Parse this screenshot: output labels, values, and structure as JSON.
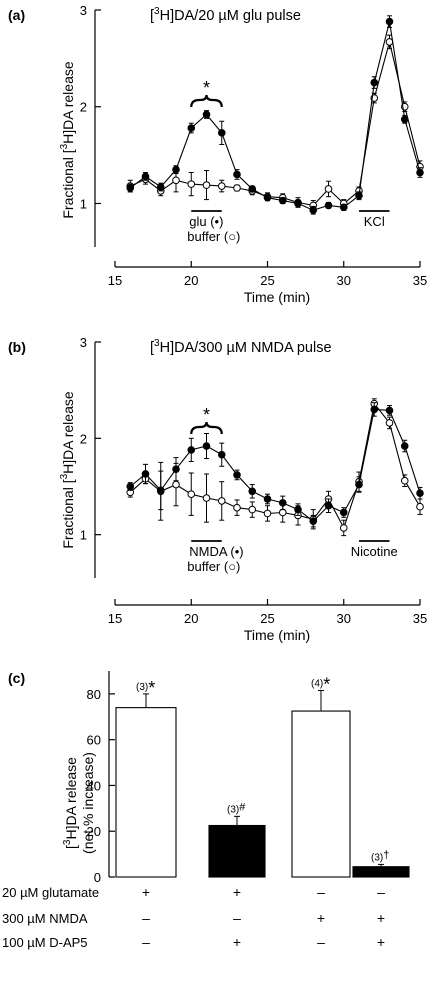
{
  "chart_data": [
    {
      "type": "line",
      "panel_label": "(a)",
      "title_parts": [
        "[",
        "3",
        "H]DA/20 µM glu pulse"
      ],
      "ylabel_parts": [
        "Fractional [",
        "3",
        "H]DA release"
      ],
      "xlabel": "Time (min)",
      "xlim": [
        15,
        35
      ],
      "ylim": [
        0.55,
        3
      ],
      "xticks": [
        "15",
        "20",
        "25",
        "30",
        "35"
      ],
      "yticks": [
        "1",
        "2",
        "3"
      ],
      "x": [
        16,
        17,
        18,
        19,
        20,
        21,
        22,
        23,
        24,
        25,
        26,
        27,
        28,
        29,
        30,
        31,
        32,
        33,
        34,
        35
      ],
      "series": [
        {
          "marker": "filled",
          "values": [
            1.16,
            1.28,
            1.17,
            1.35,
            1.78,
            1.92,
            1.73,
            1.3,
            1.15,
            1.06,
            1.03,
            1.0,
            0.93,
            0.98,
            0.96,
            1.08,
            2.25,
            2.88,
            1.87,
            1.32
          ],
          "errors": [
            0.04,
            0.04,
            0.04,
            0.04,
            0.05,
            0.04,
            0.12,
            0.05,
            0.03,
            0.03,
            0.03,
            0.03,
            0.04,
            0.03,
            0.03,
            0.04,
            0.06,
            0.06,
            0.04,
            0.05
          ]
        },
        {
          "marker": "open",
          "values": [
            1.18,
            1.25,
            1.13,
            1.24,
            1.2,
            1.19,
            1.18,
            1.16,
            1.13,
            1.07,
            1.06,
            1.01,
            0.98,
            1.15,
            1.0,
            1.13,
            2.09,
            2.67,
            2.0,
            1.38
          ],
          "errors": [
            0.06,
            0.05,
            0.05,
            0.12,
            0.12,
            0.15,
            0.06,
            0.03,
            0.04,
            0.04,
            0.04,
            0.05,
            0.05,
            0.08,
            0.04,
            0.04,
            0.05,
            0.07,
            0.05,
            0.06
          ]
        }
      ],
      "significance": "*",
      "stimulus_bars": [
        {
          "from": 20,
          "to": 22,
          "label_lines": [
            "glu (•)",
            "buffer (○)"
          ]
        },
        {
          "from": 31,
          "to": 33,
          "label_lines": [
            "KCl"
          ]
        }
      ]
    },
    {
      "type": "line",
      "panel_label": "(b)",
      "title_parts": [
        "[",
        "3",
        "H]DA/300 µM NMDA pulse"
      ],
      "ylabel_parts": [
        "Fractional [",
        "3",
        "H]DA release"
      ],
      "xlabel": "Time (min)",
      "xlim": [
        15,
        35
      ],
      "ylim": [
        0.55,
        3
      ],
      "xticks": [
        "15",
        "20",
        "25",
        "30",
        "35"
      ],
      "yticks": [
        "1",
        "2",
        "3"
      ],
      "x": [
        16,
        17,
        18,
        19,
        20,
        21,
        22,
        23,
        24,
        25,
        26,
        27,
        28,
        29,
        30,
        31,
        32,
        33,
        34,
        35
      ],
      "series": [
        {
          "marker": "filled",
          "values": [
            1.5,
            1.63,
            1.46,
            1.68,
            1.88,
            1.92,
            1.83,
            1.62,
            1.45,
            1.37,
            1.33,
            1.26,
            1.14,
            1.3,
            1.23,
            1.52,
            2.3,
            2.29,
            1.92,
            1.43
          ],
          "errors": [
            0.04,
            0.1,
            0.2,
            0.12,
            0.12,
            0.13,
            0.12,
            0.05,
            0.07,
            0.05,
            0.07,
            0.06,
            0.06,
            0.07,
            0.05,
            0.08,
            0.07,
            0.05,
            0.06,
            0.06
          ]
        },
        {
          "marker": "open",
          "values": [
            1.44,
            1.58,
            1.45,
            1.52,
            1.42,
            1.38,
            1.35,
            1.28,
            1.26,
            1.22,
            1.23,
            1.2,
            1.16,
            1.37,
            1.07,
            1.55,
            2.36,
            2.16,
            1.56,
            1.29
          ],
          "errors": [
            0.05,
            0.05,
            0.3,
            0.22,
            0.22,
            0.25,
            0.2,
            0.08,
            0.08,
            0.08,
            0.1,
            0.1,
            0.1,
            0.08,
            0.08,
            0.1,
            0.05,
            0.06,
            0.06,
            0.08
          ]
        }
      ],
      "significance": "*",
      "stimulus_bars": [
        {
          "from": 20,
          "to": 22,
          "label_lines": [
            "NMDA (•)",
            "buffer (○)"
          ]
        },
        {
          "from": 31,
          "to": 33,
          "label_lines": [
            "Nicotine"
          ]
        }
      ]
    },
    {
      "type": "bar",
      "panel_label": "(c)",
      "ylabel_parts": [
        "[",
        "3",
        "H]DA release",
        "(net % increase)"
      ],
      "ylim": [
        0,
        90
      ],
      "yticks": [
        "0",
        "20",
        "40",
        "60",
        "80"
      ],
      "values": [
        74,
        22.5,
        72.5,
        4.5
      ],
      "errors": [
        6,
        4,
        9,
        1
      ],
      "fills": [
        "#ffffff",
        "#000000",
        "#ffffff",
        "#000000"
      ],
      "n_labels": [
        "(3)",
        "(3)",
        "(4)",
        "(3)"
      ],
      "marks": [
        "*",
        "#",
        "*",
        "†"
      ],
      "conditions": [
        {
          "label": "20 µM glutamate",
          "values": [
            "+",
            "+",
            "–",
            "–"
          ]
        },
        {
          "label": "300 µM NMDA",
          "values": [
            "–",
            "–",
            "+",
            "+"
          ]
        },
        {
          "label": "100 µM  D-AP5",
          "values": [
            "–",
            "+",
            "–",
            "+"
          ]
        }
      ]
    }
  ]
}
